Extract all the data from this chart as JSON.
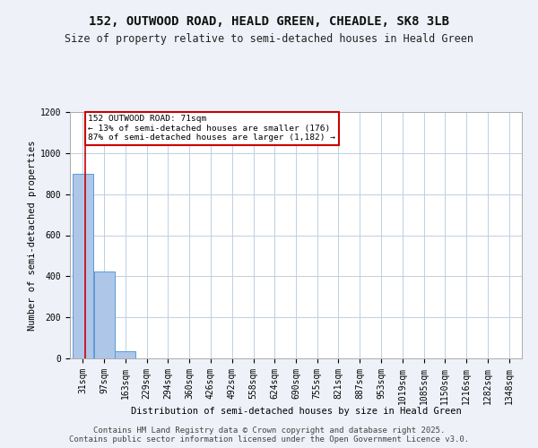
{
  "title": "152, OUTWOOD ROAD, HEALD GREEN, CHEADLE, SK8 3LB",
  "subtitle": "Size of property relative to semi-detached houses in Heald Green",
  "xlabel": "Distribution of semi-detached houses by size in Heald Green",
  "ylabel": "Number of semi-detached properties",
  "bins": [
    "31sqm",
    "97sqm",
    "163sqm",
    "229sqm",
    "294sqm",
    "360sqm",
    "426sqm",
    "492sqm",
    "558sqm",
    "624sqm",
    "690sqm",
    "755sqm",
    "821sqm",
    "887sqm",
    "953sqm",
    "1019sqm",
    "1085sqm",
    "1150sqm",
    "1216sqm",
    "1282sqm",
    "1348sqm"
  ],
  "bin_edges": [
    31,
    97,
    163,
    229,
    294,
    360,
    426,
    492,
    558,
    624,
    690,
    755,
    821,
    887,
    953,
    1019,
    1085,
    1150,
    1216,
    1282,
    1348
  ],
  "bar_heights": [
    900,
    425,
    35,
    0,
    0,
    0,
    0,
    0,
    0,
    0,
    0,
    0,
    0,
    0,
    0,
    0,
    0,
    0,
    0,
    0
  ],
  "bar_color": "#aec6e8",
  "bar_edge_color": "#5b9bd5",
  "property_value": 71,
  "property_line_color": "#cc0000",
  "annotation_text": "152 OUTWOOD ROAD: 71sqm\n← 13% of semi-detached houses are smaller (176)\n87% of semi-detached houses are larger (1,182) →",
  "annotation_box_color": "#cc0000",
  "ylim": [
    0,
    1200
  ],
  "yticks": [
    0,
    200,
    400,
    600,
    800,
    1000,
    1200
  ],
  "footer_text": "Contains HM Land Registry data © Crown copyright and database right 2025.\nContains public sector information licensed under the Open Government Licence v3.0.",
  "background_color": "#eef2f8",
  "plot_bg_color": "#eef2f8",
  "inner_plot_bg": "#ffffff",
  "grid_color": "#c0cfe0",
  "title_fontsize": 10,
  "subtitle_fontsize": 8.5,
  "axis_label_fontsize": 7.5,
  "tick_fontsize": 7,
  "footer_fontsize": 6.5
}
